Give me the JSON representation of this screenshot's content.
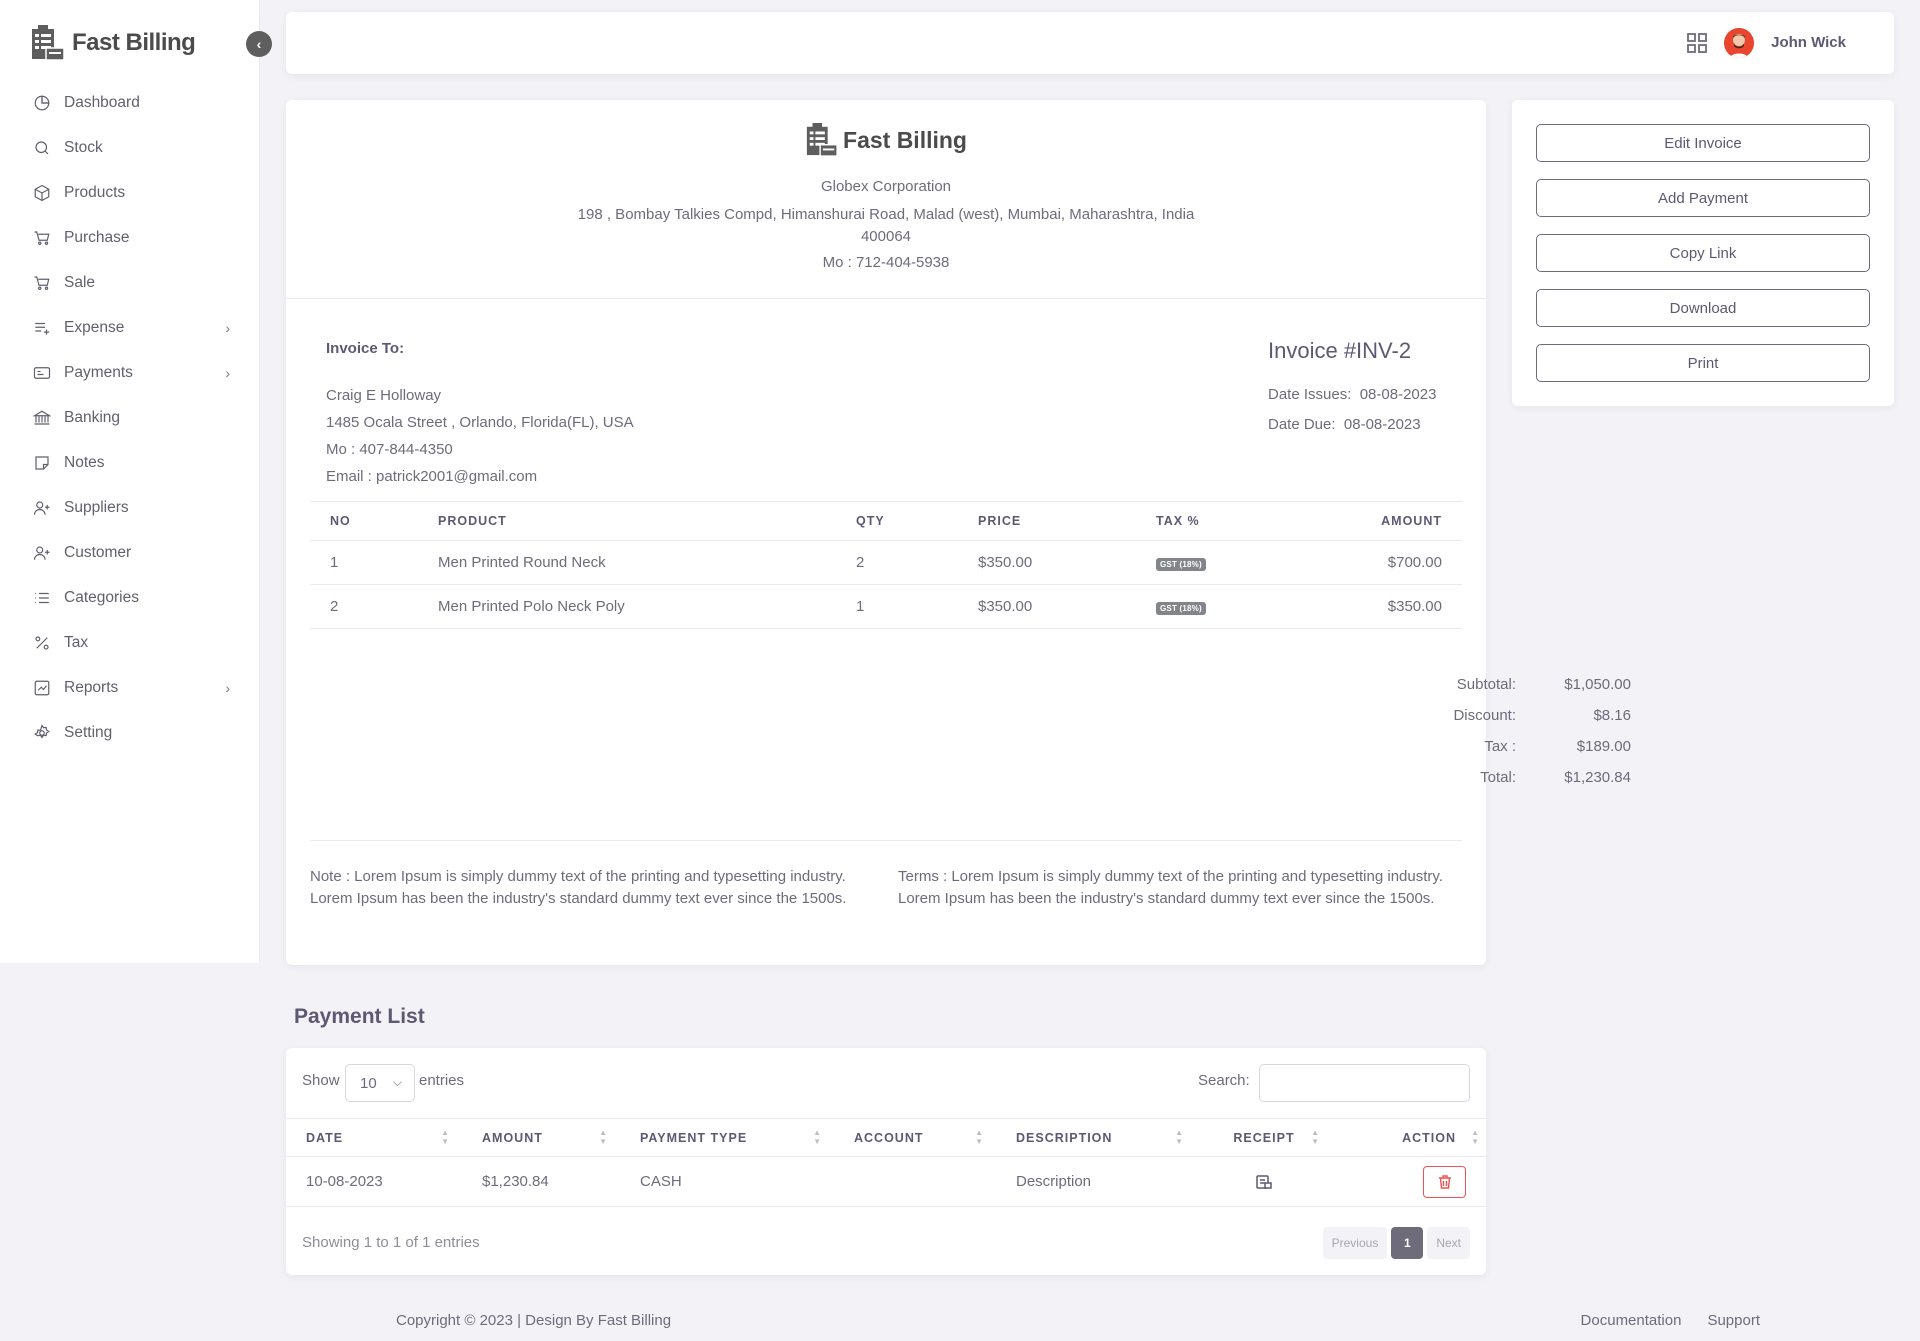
{
  "app": {
    "brand": "Fast Billing"
  },
  "sidebar": {
    "items": [
      {
        "label": "Dashboard",
        "icon": "pie-chart-icon",
        "has_submenu": false
      },
      {
        "label": "Stock",
        "icon": "search-icon",
        "has_submenu": false
      },
      {
        "label": "Products",
        "icon": "box-icon",
        "has_submenu": false
      },
      {
        "label": "Purchase",
        "icon": "cart-icon",
        "has_submenu": false
      },
      {
        "label": "Sale",
        "icon": "cart-icon",
        "has_submenu": false
      },
      {
        "label": "Expense",
        "icon": "list-plus-icon",
        "has_submenu": true
      },
      {
        "label": "Payments",
        "icon": "credit-card-icon",
        "has_submenu": true
      },
      {
        "label": "Banking",
        "icon": "bank-icon",
        "has_submenu": false
      },
      {
        "label": "Notes",
        "icon": "sticky-note-icon",
        "has_submenu": false
      },
      {
        "label": "Suppliers",
        "icon": "user-plus-icon",
        "has_submenu": false
      },
      {
        "label": "Customer",
        "icon": "user-plus-icon",
        "has_submenu": false
      },
      {
        "label": "Categories",
        "icon": "list-icon",
        "has_submenu": false
      },
      {
        "label": "Tax",
        "icon": "percent-icon",
        "has_submenu": false
      },
      {
        "label": "Reports",
        "icon": "chart-icon",
        "has_submenu": true
      },
      {
        "label": "Setting",
        "icon": "gear-icon",
        "has_submenu": false
      }
    ]
  },
  "header": {
    "user_name": "John Wick"
  },
  "invoice": {
    "brand": "Fast Billing",
    "company": "Globex Corporation",
    "address_line1": "198 , Bombay Talkies Compd, Himanshurai Road, Malad (west), Mumbai, Maharashtra, India",
    "address_line2": "400064",
    "mobile": "Mo : 712-404-5938",
    "to_label": "Invoice To:",
    "customer": {
      "name": "Craig E Holloway",
      "address": "1485 Ocala Street , Orlando, Florida(FL), USA",
      "mobile": "Mo : 407-844-4350",
      "email": "Email : patrick2001@gmail.com"
    },
    "number": "Invoice #INV-2",
    "date_issued_label": "Date Issues:",
    "date_issued": "08-08-2023",
    "date_due_label": "Date Due:",
    "date_due": "08-08-2023",
    "columns": [
      "NO",
      "PRODUCT",
      "QTY",
      "PRICE",
      "TAX %",
      "AMOUNT"
    ],
    "items": [
      {
        "no": "1",
        "product": "Men Printed Round Neck",
        "qty": "2",
        "price": "$350.00",
        "tax": "GST (18%)",
        "amount": "$700.00"
      },
      {
        "no": "2",
        "product": "Men Printed Polo Neck Poly",
        "qty": "1",
        "price": "$350.00",
        "tax": "GST (18%)",
        "amount": "$350.00"
      }
    ],
    "totals": [
      {
        "label": "Subtotal:",
        "value": "$1,050.00"
      },
      {
        "label": "Discount:",
        "value": "$8.16"
      },
      {
        "label": "Tax :",
        "value": "$189.00"
      },
      {
        "label": "Total:",
        "value": "$1,230.84"
      }
    ],
    "note": "Note : Lorem Ipsum is simply dummy text of the printing and typesetting industry. Lorem Ipsum has been the industry's standard dummy text ever since the 1500s.",
    "terms": "Terms : Lorem Ipsum is simply dummy text of the printing and typesetting industry. Lorem Ipsum has been the industry's standard dummy text ever since the 1500s."
  },
  "actions": {
    "edit": "Edit Invoice",
    "add_payment": "Add Payment",
    "copy_link": "Copy Link",
    "download": "Download",
    "print": "Print"
  },
  "payment_list": {
    "title": "Payment List",
    "show_label": "Show",
    "page_size": "10",
    "entries_label": "entries",
    "search_label": "Search:",
    "columns": [
      "DATE",
      "AMOUNT",
      "PAYMENT TYPE",
      "ACCOUNT",
      "DESCRIPTION",
      "RECEIPT",
      "ACTION"
    ],
    "rows": [
      {
        "date": "10-08-2023",
        "amount": "$1,230.84",
        "type": "CASH",
        "account": "",
        "description": "Description"
      }
    ],
    "showing": "Showing 1 to 1 of 1 entries",
    "prev": "Previous",
    "page": "1",
    "next": "Next"
  },
  "footer": {
    "copyright": "Copyright © 2023 | Design By Fast Billing",
    "links": [
      "Documentation",
      "Support"
    ]
  },
  "colors": {
    "danger": "#ea5455",
    "text": "#6e6b7b",
    "heading": "#5e5873"
  }
}
